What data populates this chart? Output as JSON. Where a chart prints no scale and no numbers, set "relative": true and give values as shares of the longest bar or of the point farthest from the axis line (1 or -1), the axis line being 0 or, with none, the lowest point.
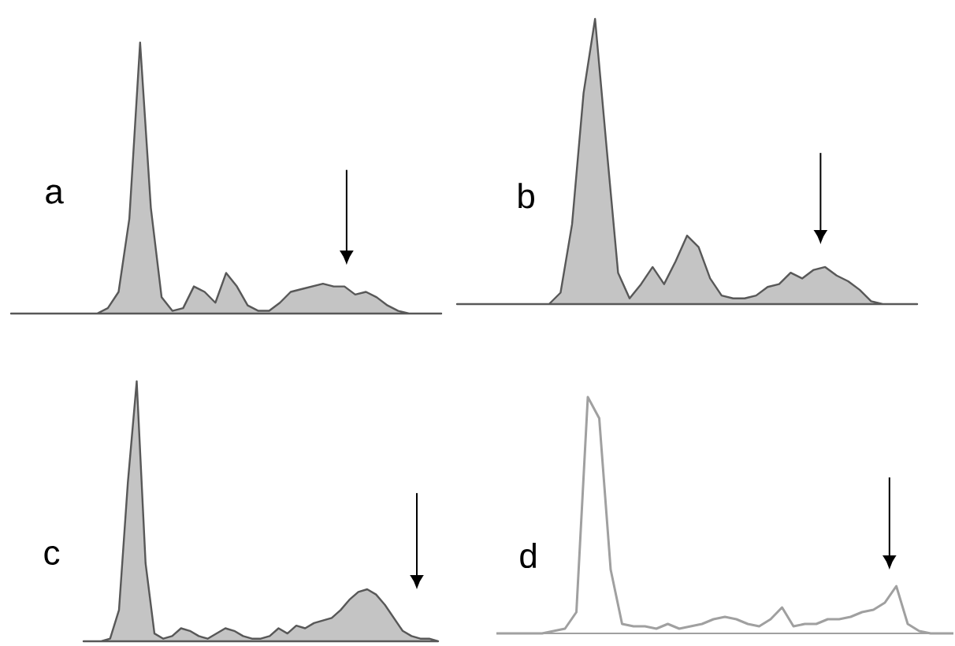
{
  "chart_data": [
    {
      "type": "area",
      "title": "a",
      "relative": true,
      "color": "#c4c4c4",
      "categories": [
        null,
        null,
        null,
        null,
        null,
        null,
        null,
        null,
        null,
        null,
        null,
        null,
        null,
        null,
        null,
        null,
        null,
        null,
        null,
        null,
        null,
        null,
        null,
        null,
        null,
        null,
        null,
        null,
        null,
        null,
        null,
        null,
        null,
        null,
        null,
        null,
        null,
        null,
        null,
        null,
        null
      ],
      "values": [
        0,
        0,
        0,
        0,
        0,
        0,
        0,
        0,
        0,
        0.02,
        0.08,
        0.35,
        1,
        0.39,
        0.06,
        0.01,
        0.02,
        0.1,
        0.08,
        0.04,
        0.15,
        0.1,
        0.03,
        0.01,
        0.01,
        0.04,
        0.08,
        0.09,
        0.1,
        0.11,
        0.1,
        0.1,
        0.07,
        0.08,
        0.06,
        0.03,
        0.01,
        0,
        0,
        0,
        0
      ]
    },
    {
      "type": "area",
      "title": "b",
      "relative": true,
      "color": "#c4c4c4",
      "categories": [
        null,
        null,
        null,
        null,
        null,
        null,
        null,
        null,
        null,
        null,
        null,
        null,
        null,
        null,
        null,
        null,
        null,
        null,
        null,
        null,
        null,
        null,
        null,
        null,
        null,
        null,
        null,
        null,
        null,
        null,
        null,
        null,
        null,
        null,
        null,
        null,
        null,
        null,
        null,
        null,
        null
      ],
      "values": [
        0,
        0,
        0,
        0,
        0,
        0,
        0,
        0,
        0,
        0.04,
        0.28,
        0.74,
        1,
        0.55,
        0.11,
        0.02,
        0.07,
        0.13,
        0.07,
        0.15,
        0.24,
        0.2,
        0.09,
        0.03,
        0.02,
        0.02,
        0.03,
        0.06,
        0.07,
        0.11,
        0.09,
        0.12,
        0.13,
        0.1,
        0.08,
        0.05,
        0.01,
        0,
        0,
        0,
        0
      ]
    },
    {
      "type": "area",
      "title": "c",
      "relative": true,
      "color": "#c4c4c4",
      "categories": [
        null,
        null,
        null,
        null,
        null,
        null,
        null,
        null,
        null,
        null,
        null,
        null,
        null,
        null,
        null,
        null,
        null,
        null,
        null,
        null,
        null,
        null,
        null,
        null,
        null,
        null,
        null,
        null,
        null,
        null,
        null,
        null,
        null,
        null,
        null,
        null,
        null,
        null,
        null,
        null,
        null
      ],
      "values": [
        0,
        0,
        0,
        0.01,
        0.12,
        0.61,
        1,
        0.3,
        0.03,
        0.01,
        0.02,
        0.05,
        0.04,
        0.02,
        0.01,
        0.03,
        0.05,
        0.04,
        0.02,
        0.01,
        0.01,
        0.02,
        0.05,
        0.03,
        0.06,
        0.05,
        0.07,
        0.08,
        0.09,
        0.12,
        0.16,
        0.19,
        0.2,
        0.18,
        0.14,
        0.09,
        0.04,
        0.02,
        0.01,
        0.01,
        0
      ]
    },
    {
      "type": "line",
      "title": "d",
      "relative": true,
      "color": "#a0a0a0",
      "categories": [
        null,
        null,
        null,
        null,
        null,
        null,
        null,
        null,
        null,
        null,
        null,
        null,
        null,
        null,
        null,
        null,
        null,
        null,
        null,
        null,
        null,
        null,
        null,
        null,
        null,
        null,
        null,
        null,
        null,
        null,
        null,
        null,
        null,
        null,
        null,
        null,
        null,
        null,
        null,
        null,
        null
      ],
      "values": [
        0,
        0,
        0,
        0,
        0,
        0.01,
        0.02,
        0.09,
        1,
        0.91,
        0.27,
        0.04,
        0.03,
        0.03,
        0.02,
        0.04,
        0.02,
        0.03,
        0.04,
        0.06,
        0.07,
        0.06,
        0.04,
        0.03,
        0.06,
        0.11,
        0.03,
        0.04,
        0.04,
        0.06,
        0.06,
        0.07,
        0.09,
        0.1,
        0.13,
        0.2,
        0.04,
        0.01,
        0,
        0,
        0
      ]
    }
  ]
}
